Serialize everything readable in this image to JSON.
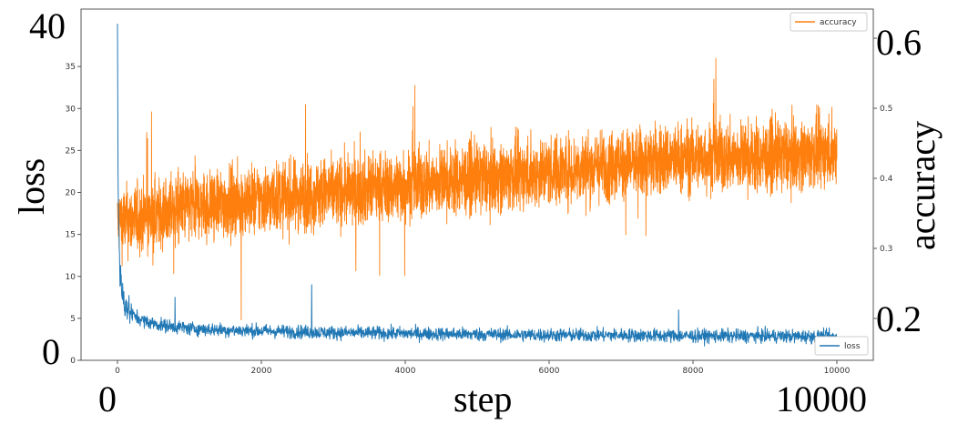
{
  "chart_data": {
    "type": "line",
    "xlabel": "step",
    "x_range": [
      0,
      10000
    ],
    "x_ticks": [
      0,
      2000,
      4000,
      6000,
      8000,
      10000
    ],
    "x_end_labels": [
      "0",
      "10000"
    ],
    "y_left": {
      "label": "loss",
      "ylim": [
        0,
        40
      ],
      "ticks": [
        0,
        5,
        10,
        15,
        20,
        25,
        30,
        35
      ],
      "end_labels": [
        "0",
        "40"
      ]
    },
    "y_right": {
      "label": "accuracy",
      "ylim": [
        0.13,
        0.63
      ],
      "ticks": [
        0.2,
        0.3,
        0.4,
        0.5,
        0.6
      ],
      "big_labels": [
        "0.6",
        "0.2"
      ]
    },
    "series": [
      {
        "name": "loss",
        "axis": "left",
        "color": "#1f77b4",
        "x": [
          0,
          10,
          30,
          60,
          100,
          150,
          200,
          300,
          400,
          600,
          800,
          1000,
          1500,
          2000,
          3000,
          4000,
          5000,
          6000,
          7000,
          8000,
          9000,
          10000
        ],
        "y": [
          40,
          20,
          11,
          8,
          7,
          6,
          5.5,
          5,
          4.6,
          4.2,
          4.0,
          3.8,
          3.6,
          3.5,
          3.3,
          3.2,
          3.1,
          3.0,
          3.0,
          2.9,
          2.9,
          2.8
        ],
        "noise": 0.8,
        "spikes": [
          [
            800,
            7.5
          ],
          [
            2700,
            9
          ],
          [
            7800,
            6
          ]
        ]
      },
      {
        "name": "accuracy",
        "axis": "right",
        "color": "#ff7f0e",
        "x": [
          0,
          200,
          1000,
          2000,
          3000,
          4000,
          5000,
          6000,
          7000,
          8000,
          9000,
          10000
        ],
        "y": [
          0.34,
          0.34,
          0.36,
          0.37,
          0.38,
          0.39,
          0.4,
          0.41,
          0.42,
          0.43,
          0.43,
          0.44
        ],
        "noise": 0.05,
        "min": 0.17,
        "max": 0.63
      }
    ],
    "legend": [
      {
        "name": "accuracy",
        "placement": "top-right"
      },
      {
        "name": "loss",
        "placement": "bottom-right"
      }
    ],
    "grid": false
  }
}
